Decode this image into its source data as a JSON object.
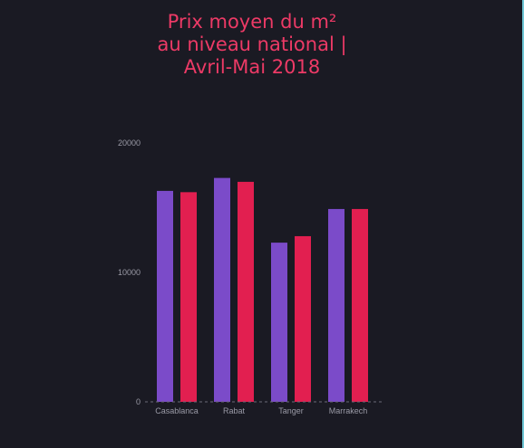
{
  "chart_data": {
    "type": "bar",
    "title": "Prix moyen du m² au niveau national | Avril-Mai 2018",
    "title_lines": [
      "Prix moyen du m²",
      "au niveau national |",
      "Avril-Mai 2018"
    ],
    "categories": [
      "Casablanca",
      "Rabat",
      "Tanger",
      "Marrakech"
    ],
    "series": [
      {
        "values": [
          16300,
          17300,
          12300,
          14900
        ],
        "color": "#7b4bc9"
      },
      {
        "values": [
          16200,
          17000,
          12800,
          14900
        ],
        "color": "#e21f50"
      }
    ],
    "yticks": [
      "0",
      "10000",
      "20000"
    ],
    "ylim": [
      0,
      20000
    ],
    "xlabel": "",
    "ylabel": "",
    "grid": false,
    "legend": "none"
  },
  "colors": {
    "background": "#1a1a23",
    "title": "#ed3a66",
    "tick_text": "#9a9aa6",
    "baseline": "#6b6b77"
  }
}
